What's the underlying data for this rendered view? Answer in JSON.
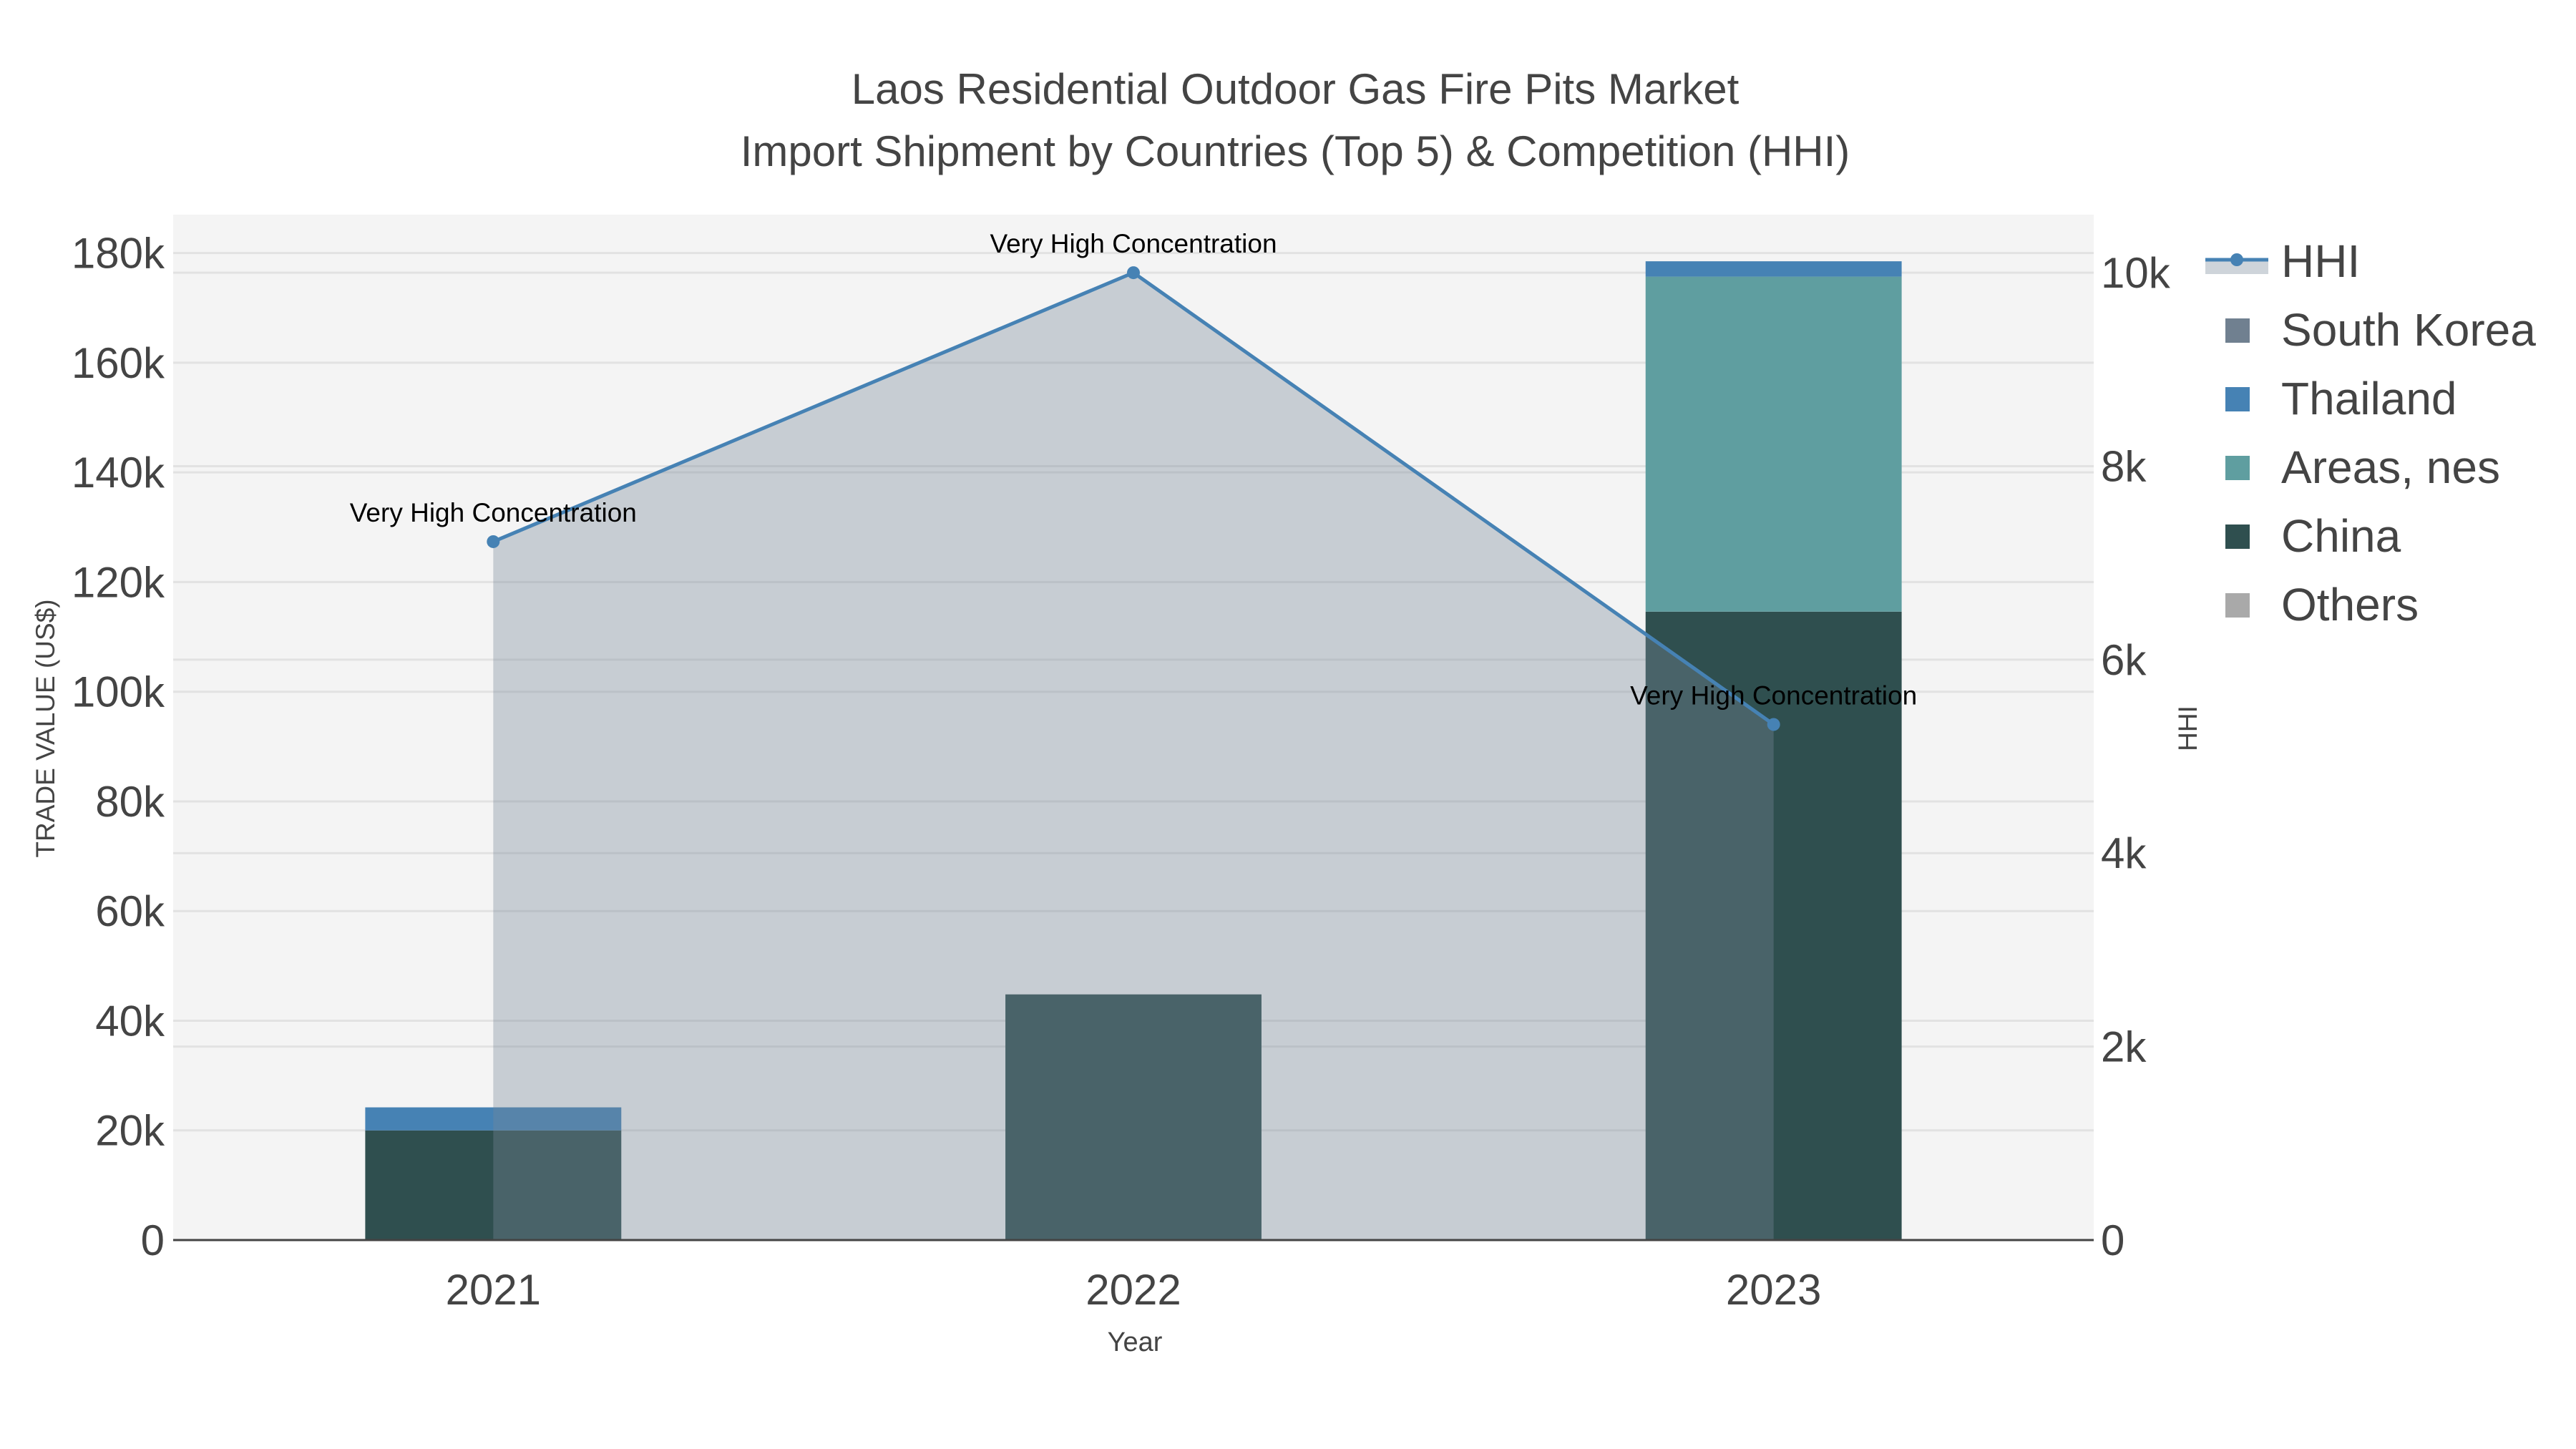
{
  "chart_data": {
    "type": "bar",
    "title_line1": "Laos Residential Outdoor Gas Fire Pits Market",
    "title_line2": "Import Shipment by Countries (Top 5) & Competition (HHI)",
    "xlabel": "Year",
    "ylabel": "TRADE VALUE (US$)",
    "y2label": "HHI",
    "categories": [
      "2021",
      "2022",
      "2023"
    ],
    "ylim": [
      0,
      187000
    ],
    "y2lim": [
      0,
      10600
    ],
    "yticks": [
      0,
      20000,
      40000,
      60000,
      80000,
      100000,
      120000,
      140000,
      160000,
      180000
    ],
    "ytick_labels": [
      "0",
      "20k",
      "40k",
      "60k",
      "80k",
      "100k",
      "120k",
      "140k",
      "160k",
      "180k"
    ],
    "y2ticks": [
      0,
      2000,
      4000,
      6000,
      8000,
      10000
    ],
    "y2tick_labels": [
      "0",
      "2k",
      "4k",
      "6k",
      "8k",
      "10k"
    ],
    "series": [
      {
        "name": "China",
        "color": "#2F4F4F",
        "values": [
          20000,
          44800,
          114600
        ]
      },
      {
        "name": "Others",
        "color": "#A9A9A9",
        "values": [
          0,
          0,
          0
        ]
      },
      {
        "name": "Areas, nes",
        "color": "#5F9EA0",
        "values": [
          0,
          0,
          61100
        ]
      },
      {
        "name": "Thailand",
        "color": "#4682B4",
        "values": [
          4200,
          0,
          2800
        ]
      },
      {
        "name": "South Korea",
        "color": "#708090",
        "values": [
          0,
          0,
          0
        ]
      }
    ],
    "hhi": {
      "name": "HHI",
      "color": "#4682B4",
      "fill": "rgba(119,136,153,0.36)",
      "values": [
        7220,
        10000,
        5330
      ],
      "annotations": [
        "Very High Concentration",
        "Very High Concentration",
        "Very High Concentration"
      ]
    },
    "legend": {
      "placement": "top-right",
      "entries": [
        {
          "name": "HHI",
          "color": "#4682B4",
          "kind": "line"
        },
        {
          "name": "South Korea",
          "color": "#708090",
          "kind": "box"
        },
        {
          "name": "Thailand",
          "color": "#4682B4",
          "kind": "box"
        },
        {
          "name": "Areas, nes",
          "color": "#5F9EA0",
          "kind": "box"
        },
        {
          "name": "China",
          "color": "#2F4F4F",
          "kind": "box"
        },
        {
          "name": "Others",
          "color": "#A9A9A9",
          "kind": "box"
        }
      ]
    },
    "grid": true
  }
}
